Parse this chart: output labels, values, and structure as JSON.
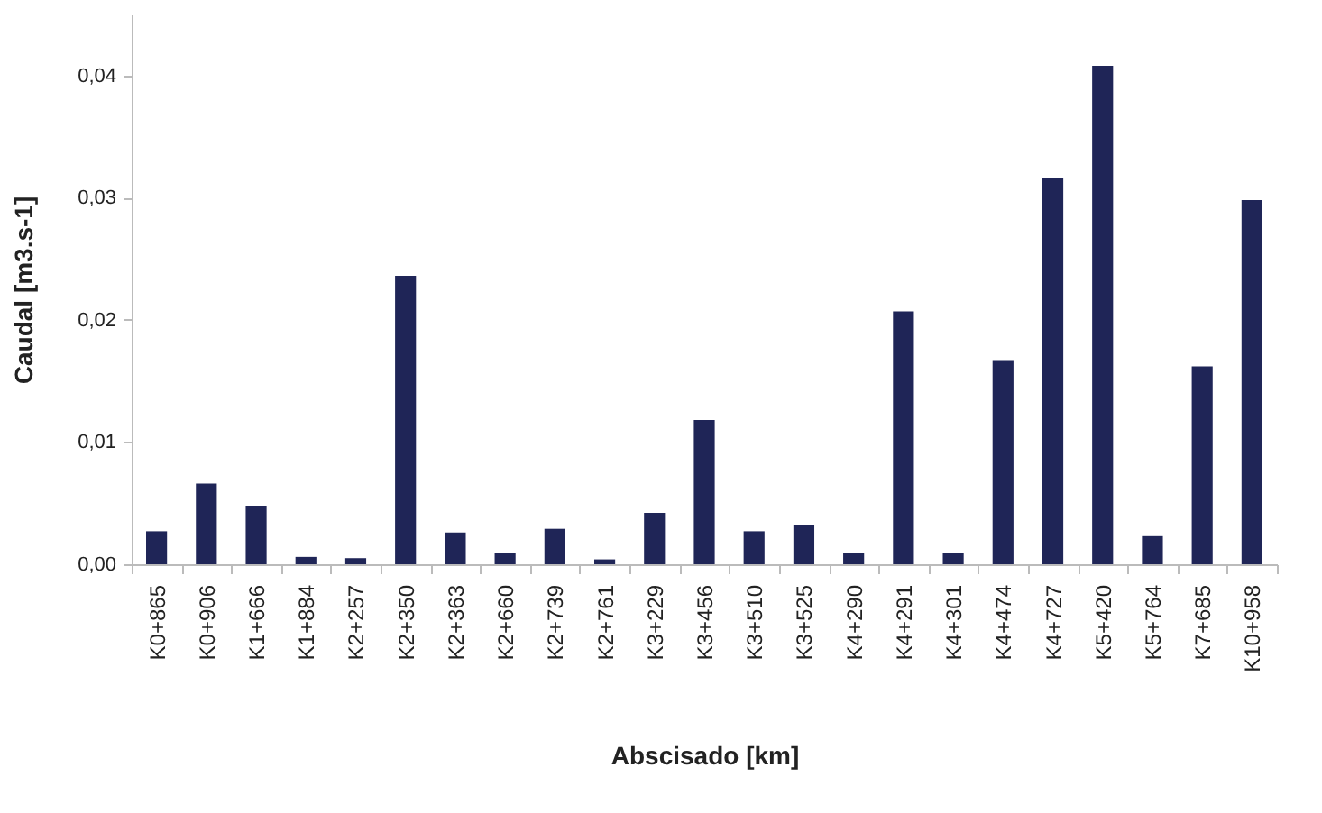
{
  "chart_data": {
    "type": "bar",
    "xlabel": "Abscisado [km]",
    "ylabel": "Caudal [m3.s-1]",
    "categories": [
      "K0+865",
      "K0+906",
      "K1+666",
      "K1+884",
      "K2+257",
      "K2+350",
      "K2+363",
      "K2+660",
      "K2+739",
      "K2+761",
      "K3+229",
      "K3+456",
      "K3+510",
      "K3+525",
      "K4+290",
      "K4+291",
      "K4+301",
      "K4+474",
      "K4+727",
      "K5+420",
      "K5+764",
      "K7+685",
      "K10+958"
    ],
    "values": [
      0.0027,
      0.0066,
      0.0048,
      0.0006,
      0.0005,
      0.0236,
      0.0026,
      0.0009,
      0.0029,
      0.0004,
      0.0042,
      0.0118,
      0.0027,
      0.0032,
      0.0009,
      0.0207,
      0.0009,
      0.0167,
      0.0316,
      0.0408,
      0.0023,
      0.0162,
      0.0298
    ],
    "color": "#1f2557",
    "ylim": [
      0,
      0.045
    ],
    "yticks": [
      {
        "value": 0,
        "label": "0,00"
      },
      {
        "value": 0.01,
        "label": "0,01"
      },
      {
        "value": 0.02,
        "label": "0,02"
      },
      {
        "value": 0.03,
        "label": "0,03"
      },
      {
        "value": 0.04,
        "label": "0,04"
      }
    ]
  }
}
